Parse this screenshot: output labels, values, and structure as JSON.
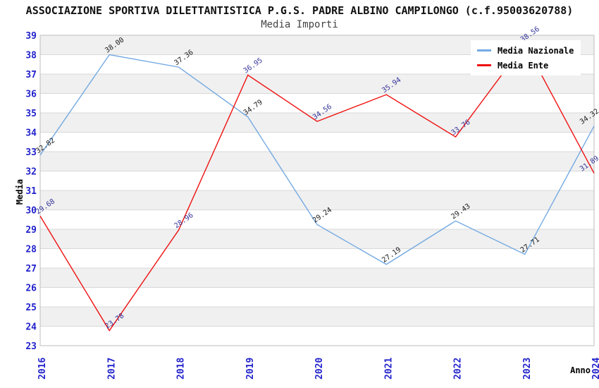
{
  "header": {
    "title": "ASSOCIAZIONE SPORTIVA DILETTANTISTICA P.G.S. PADRE ALBINO CAMPILONGO (c.f.95003620788)",
    "subtitle": "Media Importi"
  },
  "chart_data": {
    "type": "line",
    "title": "ASSOCIAZIONE SPORTIVA DILETTANTISTICA P.G.S. PADRE ALBINO CAMPILONGO (c.f.95003620788)",
    "subtitle": "Media Importi",
    "categories": [
      "2016",
      "2017",
      "2018",
      "2019",
      "2020",
      "2021",
      "2022",
      "2023",
      "2024"
    ],
    "series": [
      {
        "name": "Media Nazionale",
        "color": "#74aae2",
        "label_color": "#1a1a1a",
        "values": [
          32.82,
          38.0,
          37.36,
          34.79,
          29.24,
          27.19,
          29.43,
          27.71,
          34.32
        ]
      },
      {
        "name": "Media Ente",
        "color": "#ee1111",
        "label_color": "#333399",
        "values": [
          29.68,
          23.78,
          28.96,
          36.95,
          34.56,
          35.94,
          33.76,
          38.56,
          31.89
        ]
      }
    ],
    "xlabel": "Anno",
    "ylabel": "Media",
    "ylim": [
      23,
      39
    ],
    "ytick_step": 1,
    "grid": true,
    "legend_position": "top-right",
    "band_colors": [
      "#f0f0f0",
      "#ffffff"
    ],
    "gridline_color": "#d9d9d9",
    "border_color": "#bdbdbd",
    "tick_color": "#2222cc"
  }
}
